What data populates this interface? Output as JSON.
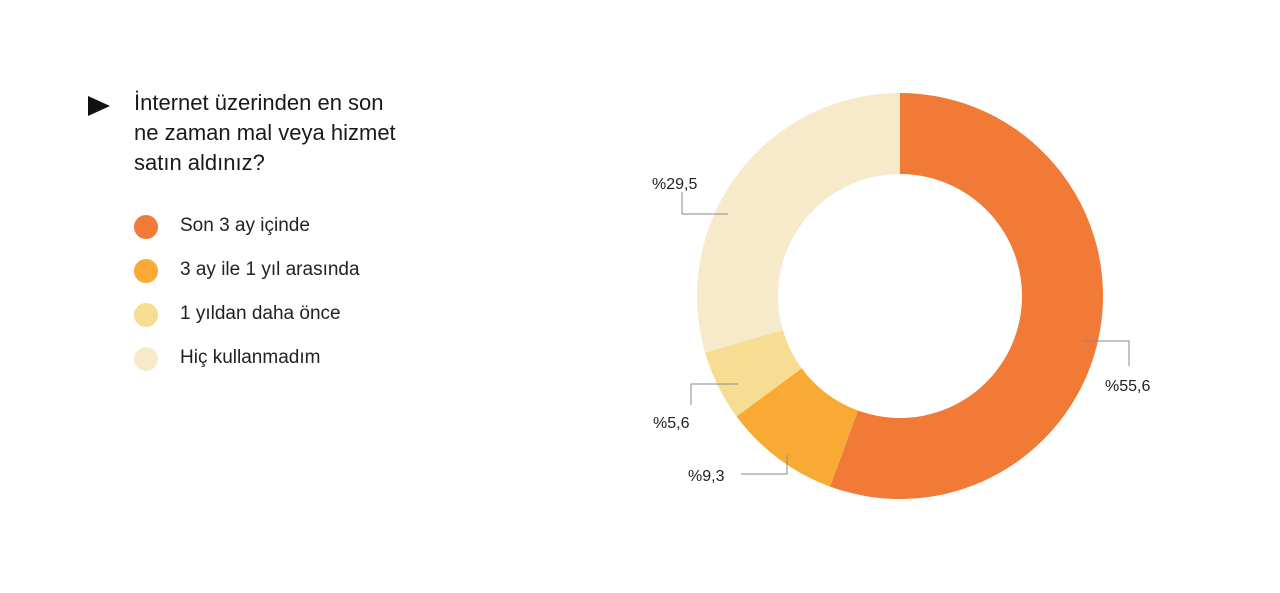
{
  "question": {
    "text": "İnternet üzerinden en son\nne zaman mal veya hizmet\nsatın aldınız?",
    "marker_icon": "play-triangle-icon"
  },
  "legend": [
    {
      "label": "Son 3 ay içinde",
      "color": "#F07A36"
    },
    {
      "label": "3 ay ile 1 yıl arasında",
      "color": "#F8AA35"
    },
    {
      "label": "1 yıldan daha önce",
      "color": "#F6DD92"
    },
    {
      "label": "Hiç kullanmadım",
      "color": "#F6EACB"
    }
  ],
  "chart_data": {
    "type": "pie",
    "title": "İnternet üzerinden en son ne zaman mal veya hizmet satın aldınız?",
    "categories": [
      "Son 3 ay içinde",
      "3 ay ile 1 yıl arasında",
      "1 yıldan daha önce",
      "Hiç kullanmadım"
    ],
    "values": [
      55.6,
      9.3,
      5.6,
      29.5
    ],
    "value_labels": [
      "%55,6",
      "%9,3",
      "%5,6",
      "%29,5"
    ],
    "colors": [
      "#F07A36",
      "#F8AA35",
      "#F6DD92",
      "#F6EACB"
    ],
    "style": "donut",
    "legend_position": "left"
  }
}
